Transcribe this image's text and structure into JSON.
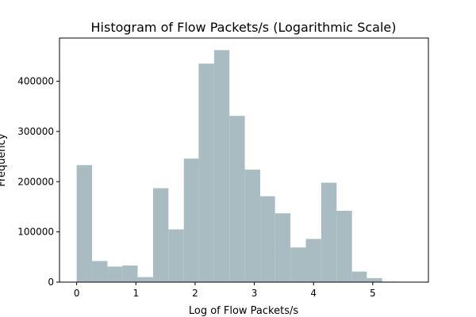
{
  "chart_data": {
    "type": "bar",
    "title": "Histogram of Flow Packets/s (Logarithmic Scale)",
    "xlabel": "Log of Flow Packets/s",
    "ylabel": "Frequency",
    "xlim": [
      -0.29,
      5.94
    ],
    "ylim": [
      0,
      486000
    ],
    "bar_color": "#a9bcc2",
    "bins": [
      {
        "x0": 0.0,
        "x1": 0.26,
        "value": 233000
      },
      {
        "x0": 0.26,
        "x1": 0.52,
        "value": 42000
      },
      {
        "x0": 0.52,
        "x1": 0.77,
        "value": 31000
      },
      {
        "x0": 0.77,
        "x1": 1.03,
        "value": 33000
      },
      {
        "x0": 1.03,
        "x1": 1.29,
        "value": 10000
      },
      {
        "x0": 1.29,
        "x1": 1.55,
        "value": 187000
      },
      {
        "x0": 1.55,
        "x1": 1.81,
        "value": 105000
      },
      {
        "x0": 1.81,
        "x1": 2.06,
        "value": 246000
      },
      {
        "x0": 2.06,
        "x1": 2.32,
        "value": 435000
      },
      {
        "x0": 2.32,
        "x1": 2.58,
        "value": 462000
      },
      {
        "x0": 2.58,
        "x1": 2.84,
        "value": 331000
      },
      {
        "x0": 2.84,
        "x1": 3.1,
        "value": 224000
      },
      {
        "x0": 3.1,
        "x1": 3.35,
        "value": 171000
      },
      {
        "x0": 3.35,
        "x1": 3.61,
        "value": 137000
      },
      {
        "x0": 3.61,
        "x1": 3.87,
        "value": 69000
      },
      {
        "x0": 3.87,
        "x1": 4.13,
        "value": 86000
      },
      {
        "x0": 4.13,
        "x1": 4.39,
        "value": 198000
      },
      {
        "x0": 4.39,
        "x1": 4.65,
        "value": 142000
      },
      {
        "x0": 4.65,
        "x1": 4.9,
        "value": 21000
      },
      {
        "x0": 4.9,
        "x1": 5.16,
        "value": 8000
      },
      {
        "x0": 5.16,
        "x1": 5.42,
        "value": 1000
      },
      {
        "x0": 5.42,
        "x1": 5.68,
        "value": 500
      }
    ],
    "x_ticks": [
      {
        "value": 0,
        "label": "0"
      },
      {
        "value": 1,
        "label": "1"
      },
      {
        "value": 2,
        "label": "2"
      },
      {
        "value": 3,
        "label": "3"
      },
      {
        "value": 4,
        "label": "4"
      },
      {
        "value": 5,
        "label": "5"
      }
    ],
    "y_ticks": [
      {
        "value": 0,
        "label": "0"
      },
      {
        "value": 100000,
        "label": "100000"
      },
      {
        "value": 200000,
        "label": "200000"
      },
      {
        "value": 300000,
        "label": "300000"
      },
      {
        "value": 400000,
        "label": "400000"
      }
    ],
    "grid": false,
    "legend": "none"
  }
}
